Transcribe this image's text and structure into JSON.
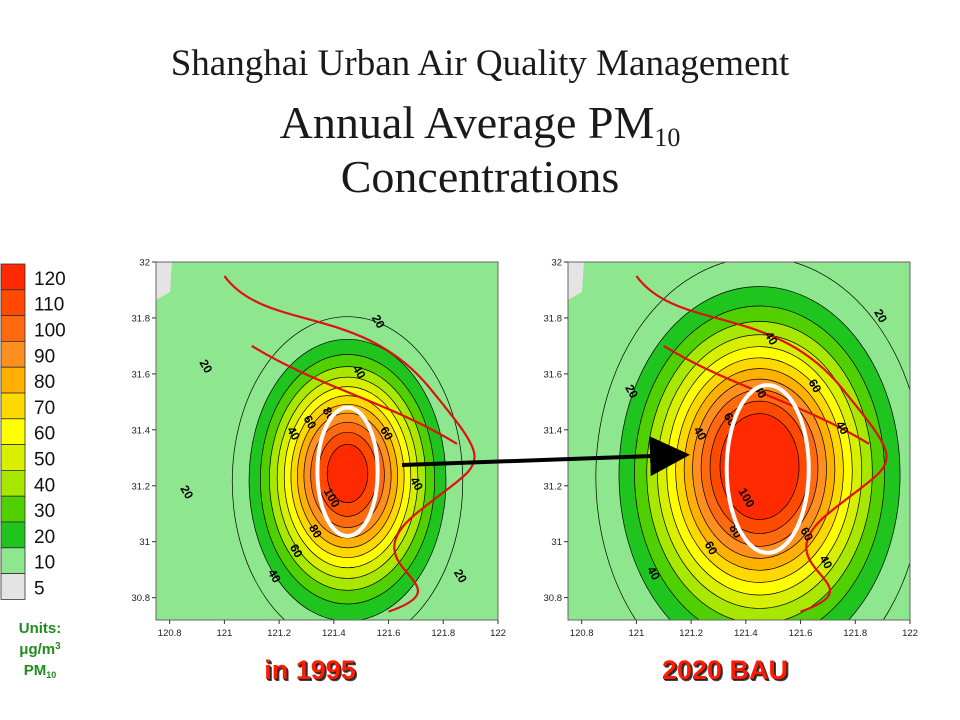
{
  "title": {
    "line1": "Shanghai Urban Air Quality Management",
    "line2_main": "Annual Average PM",
    "line2_sub": "10",
    "line3": "Concentrations"
  },
  "legend": {
    "levels": [
      "120",
      "110",
      "100",
      "90",
      "80",
      "70",
      "60",
      "50",
      "40",
      "30",
      "20",
      "10",
      "5"
    ],
    "colors": [
      "#ff2a00",
      "#ff4a00",
      "#ff6a10",
      "#ff9020",
      "#ffb000",
      "#ffd800",
      "#ffff00",
      "#d8f000",
      "#a8e800",
      "#50d000",
      "#1fc41f",
      "#8ee68e",
      "#e4e4e4"
    ],
    "units_label": "Units:",
    "units_value": "μg/m",
    "units_sup": "3",
    "units_pm": "PM",
    "units_pm_sub": "10"
  },
  "captions": {
    "left": "in 1995",
    "right": "2020 BAU"
  },
  "chart_data": [
    {
      "type": "heatmap",
      "name": "in 1995",
      "x_ticks": [
        "120.8",
        "121",
        "121.2",
        "121.4",
        "121.6",
        "121.8",
        "122"
      ],
      "y_ticks": [
        "32",
        "31.8",
        "31.6",
        "31.4",
        "31.2",
        "31",
        "30.8"
      ],
      "xlim": [
        120.75,
        122.0
      ],
      "ylim": [
        30.72,
        32.0
      ],
      "peak": {
        "lon": 121.45,
        "lat": 31.25,
        "value": 130
      },
      "spread": {
        "sx": 0.3,
        "sy": 0.42
      },
      "contour_levels": [
        10,
        20,
        30,
        40,
        50,
        60,
        70,
        80,
        90,
        100,
        110,
        120
      ],
      "contour_labels": [
        {
          "text": "20",
          "lon": 121.55,
          "lat": 31.78
        },
        {
          "text": "20",
          "lon": 120.92,
          "lat": 31.62
        },
        {
          "text": "20",
          "lon": 120.85,
          "lat": 31.17
        },
        {
          "text": "20",
          "lon": 121.85,
          "lat": 30.87
        },
        {
          "text": "40",
          "lon": 121.48,
          "lat": 31.6
        },
        {
          "text": "40",
          "lon": 121.24,
          "lat": 31.38
        },
        {
          "text": "40",
          "lon": 121.69,
          "lat": 31.2
        },
        {
          "text": "40",
          "lon": 121.17,
          "lat": 30.87
        },
        {
          "text": "60",
          "lon": 121.3,
          "lat": 31.42
        },
        {
          "text": "60",
          "lon": 121.58,
          "lat": 31.38
        },
        {
          "text": "60",
          "lon": 121.25,
          "lat": 30.96
        },
        {
          "text": "80",
          "lon": 121.37,
          "lat": 31.45
        },
        {
          "text": "80",
          "lon": 121.32,
          "lat": 31.03
        },
        {
          "text": "100",
          "lon": 121.38,
          "lat": 31.15
        }
      ],
      "highlight": {
        "lon": 121.45,
        "lat": 31.25,
        "rlon": 0.11,
        "rlat": 0.23
      }
    },
    {
      "type": "heatmap",
      "name": "2020 BAU",
      "x_ticks": [
        "120.8",
        "121",
        "121.2",
        "121.4",
        "121.6",
        "121.8",
        "122"
      ],
      "y_ticks": [
        "32",
        "31.8",
        "31.6",
        "31.4",
        "31.2",
        "31",
        "30.8"
      ],
      "xlim": [
        120.75,
        122.0
      ],
      "ylim": [
        30.72,
        32.0
      ],
      "peak": {
        "lon": 121.45,
        "lat": 31.28,
        "value": 140
      },
      "spread": {
        "sx": 0.42,
        "sy": 0.55
      },
      "contour_levels": [
        10,
        20,
        30,
        40,
        50,
        60,
        70,
        80,
        90,
        100,
        110,
        120
      ],
      "contour_labels": [
        {
          "text": "20",
          "lon": 121.88,
          "lat": 31.8
        },
        {
          "text": "20",
          "lon": 120.97,
          "lat": 31.53
        },
        {
          "text": "40",
          "lon": 121.48,
          "lat": 31.72
        },
        {
          "text": "40",
          "lon": 121.22,
          "lat": 31.38
        },
        {
          "text": "40",
          "lon": 121.74,
          "lat": 31.4
        },
        {
          "text": "40",
          "lon": 121.05,
          "lat": 30.88
        },
        {
          "text": "40",
          "lon": 121.68,
          "lat": 30.92
        },
        {
          "text": "60",
          "lon": 121.33,
          "lat": 31.43
        },
        {
          "text": "60",
          "lon": 121.64,
          "lat": 31.55
        },
        {
          "text": "60",
          "lon": 121.61,
          "lat": 31.02
        },
        {
          "text": "60",
          "lon": 121.26,
          "lat": 30.97
        },
        {
          "text": "80",
          "lon": 121.44,
          "lat": 31.53
        },
        {
          "text": "80",
          "lon": 121.35,
          "lat": 31.03
        },
        {
          "text": "100",
          "lon": 121.39,
          "lat": 31.15
        }
      ],
      "highlight": {
        "lon": 121.48,
        "lat": 31.26,
        "rlon": 0.15,
        "rlat": 0.3
      }
    }
  ]
}
